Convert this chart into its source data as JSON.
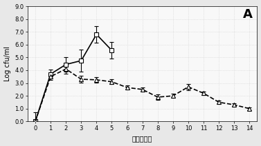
{
  "title_label": "A",
  "xlabel": "感染后活奶",
  "ylabel": "Log cfu/ml",
  "xlim": [
    -0.5,
    14.5
  ],
  "ylim": [
    0.0,
    9.0
  ],
  "yticks": [
    0.0,
    1.0,
    2.0,
    3.0,
    4.0,
    5.0,
    6.0,
    7.0,
    8.0,
    9.0
  ],
  "ytick_labels": [
    "0.0",
    "1.0",
    "2.0",
    "3.0",
    "4.0",
    "5.0",
    "6.0",
    "7.0",
    "8.0",
    "9.0"
  ],
  "xticks": [
    0,
    1,
    2,
    3,
    4,
    5,
    6,
    7,
    8,
    9,
    10,
    11,
    12,
    13,
    14
  ],
  "series1_x": [
    0,
    1,
    2,
    3,
    4,
    5
  ],
  "series1_y": [
    0.0,
    3.7,
    4.45,
    4.75,
    6.8,
    5.55
  ],
  "series1_yerr": [
    0.7,
    0.35,
    0.55,
    0.85,
    0.65,
    0.65
  ],
  "series1_marker": "s",
  "series1_linestyle": "-",
  "series1_color": "#000000",
  "series2_x": [
    0,
    1,
    2,
    3,
    4,
    5,
    6,
    7,
    8,
    9,
    10,
    11,
    12,
    13,
    14
  ],
  "series2_y": [
    0.0,
    3.5,
    4.1,
    3.3,
    3.25,
    3.1,
    2.65,
    2.5,
    1.9,
    2.0,
    2.7,
    2.2,
    1.5,
    1.3,
    1.0
  ],
  "series2_yerr": [
    0.0,
    0.25,
    0.35,
    0.25,
    0.2,
    0.2,
    0.15,
    0.15,
    0.2,
    0.15,
    0.25,
    0.15,
    0.15,
    0.1,
    0.1
  ],
  "series2_marker": "^",
  "series2_linestyle": "--",
  "series2_color": "#000000",
  "background_color": "#e8e8e8",
  "plot_bg_color": "#f8f8f8",
  "grid_color": "#d0d0d0",
  "capsize": 2,
  "markersize": 4,
  "linewidth": 1.2,
  "elinewidth": 0.8,
  "title_fontsize": 13,
  "tick_fontsize": 6,
  "label_fontsize": 7
}
